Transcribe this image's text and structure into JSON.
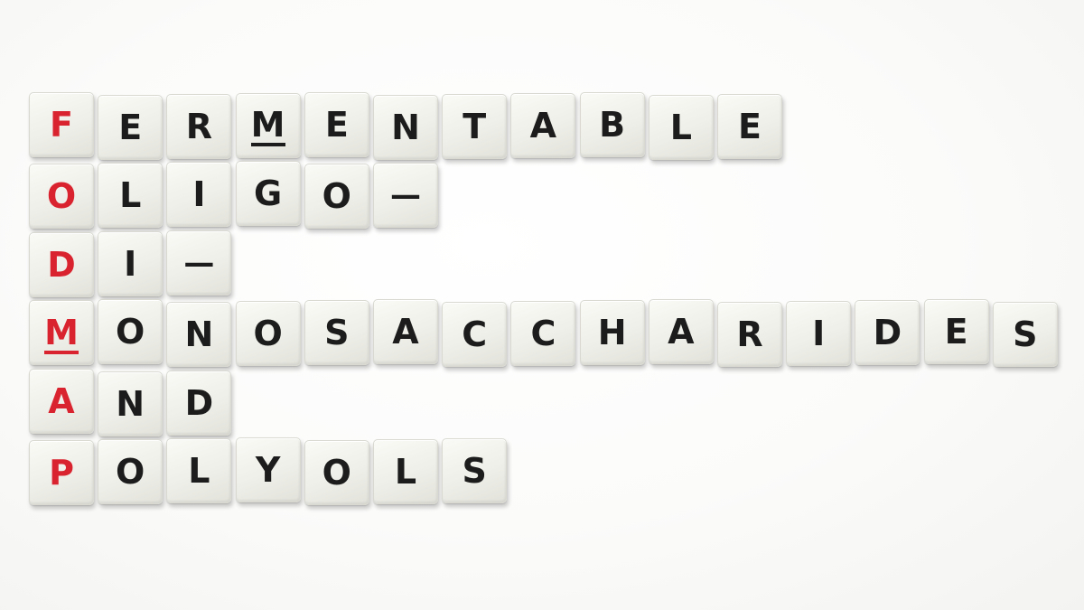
{
  "scene": {
    "description_label": "FODMAP letter tiles",
    "colors": {
      "initial_letter": "#d9232f",
      "letter": "#1c1c1c",
      "tile_face": "#f2f2ec"
    },
    "rows": [
      {
        "word": "FERMENTABLE",
        "underlined_positions": [
          3
        ]
      },
      {
        "word": "OLIGO-",
        "underlined_positions": []
      },
      {
        "word": "DI-",
        "underlined_positions": []
      },
      {
        "word": "MONOSACCHARIDES",
        "underlined_positions": [
          0
        ]
      },
      {
        "word": "AND",
        "underlined_positions": []
      },
      {
        "word": "POLYOLS",
        "underlined_positions": []
      }
    ],
    "acrostic": "FODMAP"
  }
}
